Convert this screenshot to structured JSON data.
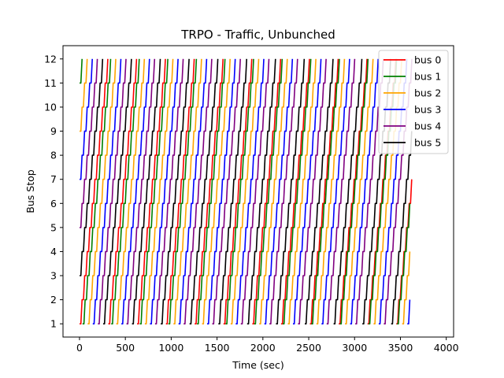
{
  "chart_data": {
    "type": "line",
    "title": "TRPO - Traffic, Unbunched",
    "xlabel": "Time (sec)",
    "ylabel": "Bus Stop",
    "xlim": [
      -180,
      4080
    ],
    "ylim": [
      0.45,
      12.55
    ],
    "xticks": [
      0,
      500,
      1000,
      1500,
      2000,
      2500,
      3000,
      3500,
      4000
    ],
    "yticks": [
      1,
      2,
      3,
      4,
      5,
      6,
      7,
      8,
      9,
      10,
      11,
      12
    ],
    "grid": false,
    "legend_position": "top-right",
    "series": [
      {
        "name": "bus 0",
        "color": "#ff0000",
        "start_stop": 1,
        "start_time": 0,
        "final_stop": 7,
        "end_time": 3870
      },
      {
        "name": "bus 1",
        "color": "#008000",
        "start_stop": 11,
        "start_time": 0,
        "final_stop": 6,
        "end_time": 3870
      },
      {
        "name": "bus 2",
        "color": "#ffa500",
        "start_stop": 9,
        "start_time": 0,
        "final_stop": 4,
        "end_time": 3870
      },
      {
        "name": "bus 3",
        "color": "#0000ff",
        "start_stop": 7,
        "start_time": 0,
        "final_stop": 2,
        "end_time": 3870
      },
      {
        "name": "bus 4",
        "color": "#800080",
        "start_stop": 5,
        "start_time": 0,
        "final_stop": 12,
        "end_time": 3870
      },
      {
        "name": "bus 5",
        "color": "#000000",
        "start_stop": 3,
        "start_time": 0,
        "final_stop": 9,
        "end_time": 3870
      }
    ]
  }
}
